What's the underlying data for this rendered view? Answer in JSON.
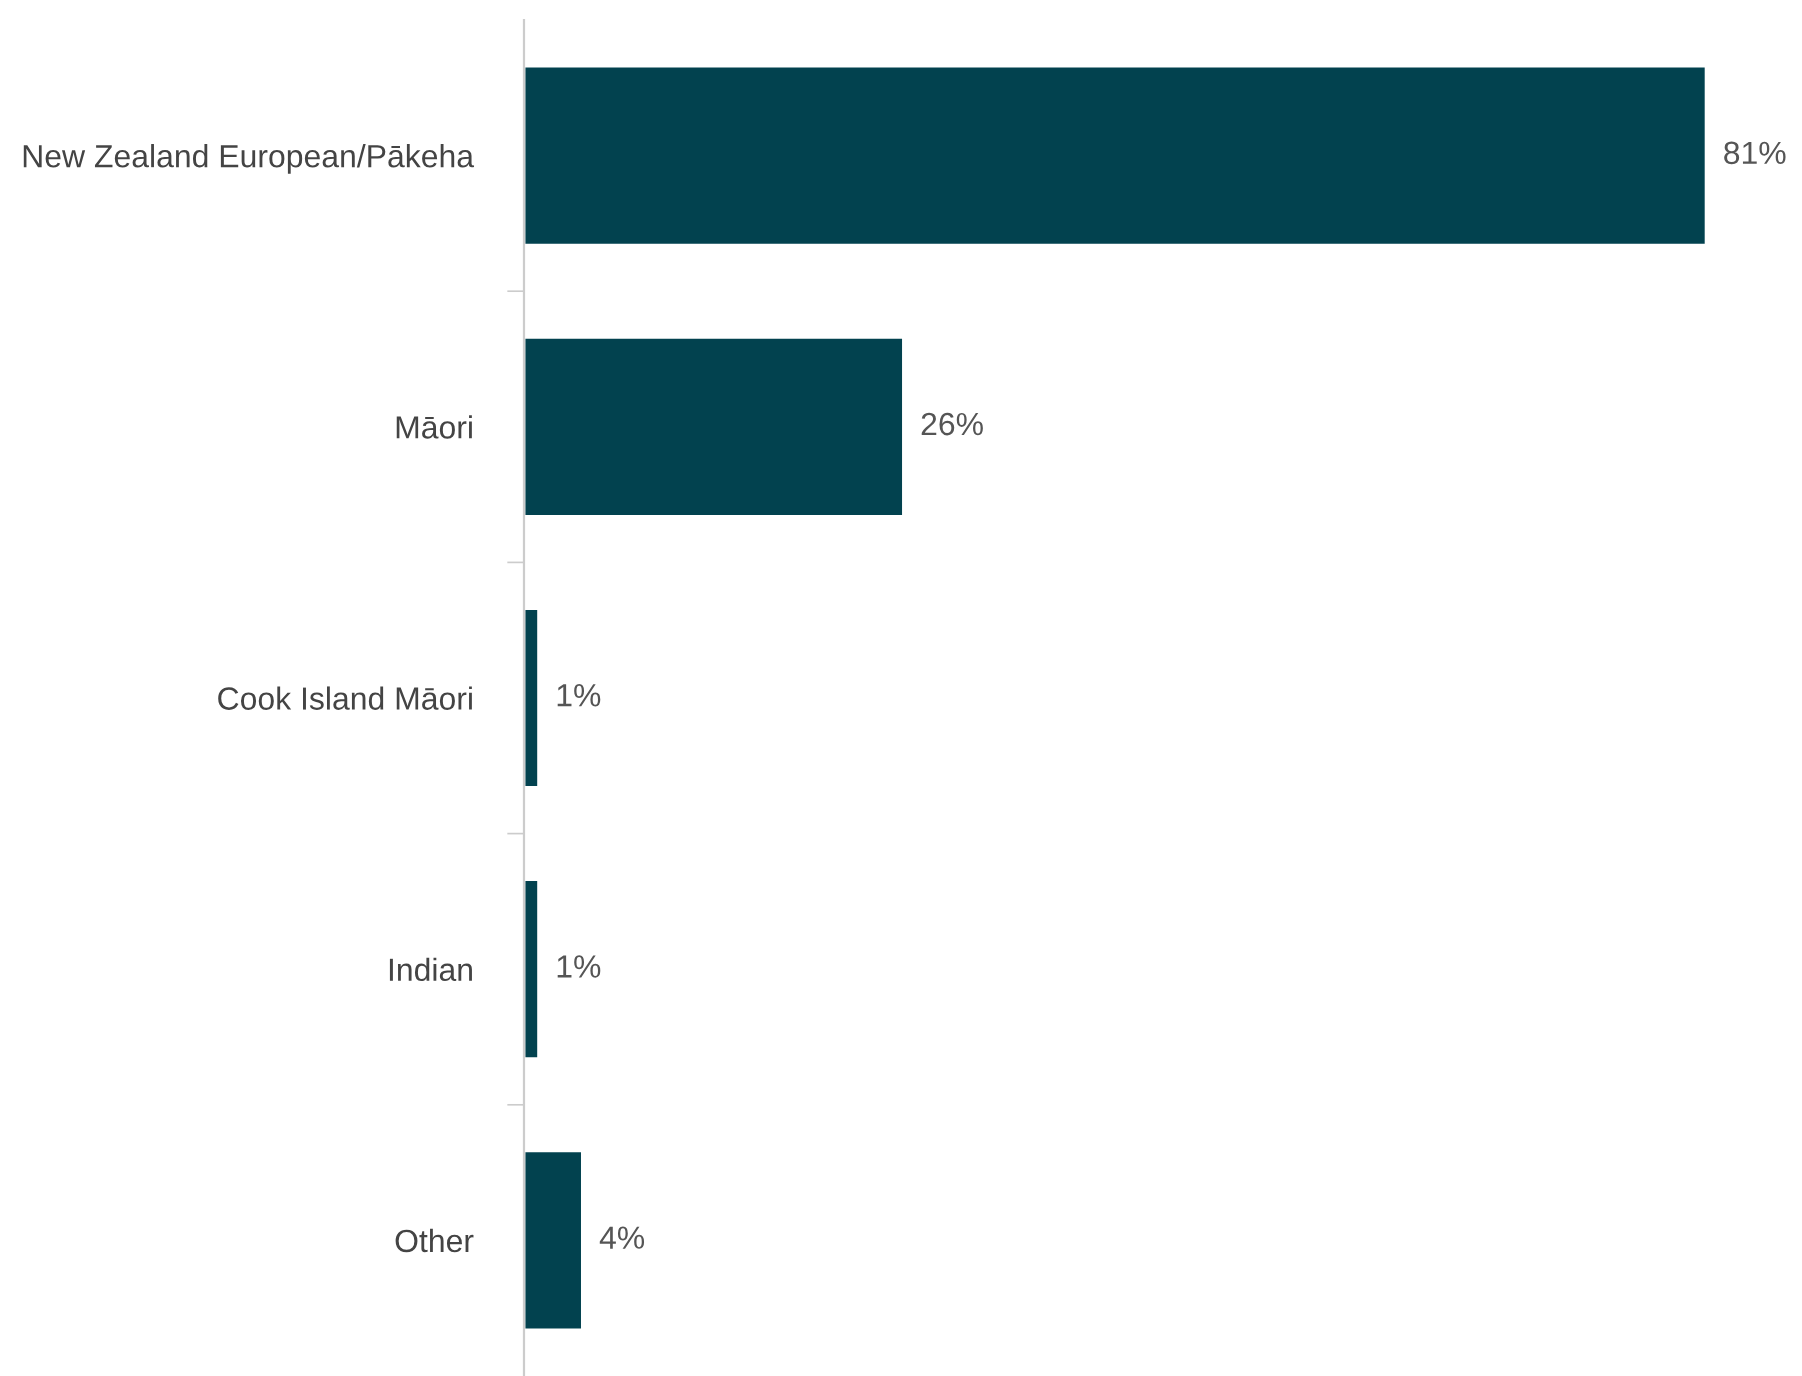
{
  "chart_data": {
    "type": "bar",
    "orientation": "horizontal",
    "categories": [
      "New Zealand European/Pākeha",
      "Māori",
      "Cook Island Māori",
      "Indian",
      "Other"
    ],
    "values": [
      81,
      26,
      1,
      1,
      4
    ],
    "value_labels": [
      "81%",
      "26%",
      "1%",
      "1%",
      "4%"
    ],
    "color": "#02424f",
    "grid": false,
    "legend": false
  }
}
